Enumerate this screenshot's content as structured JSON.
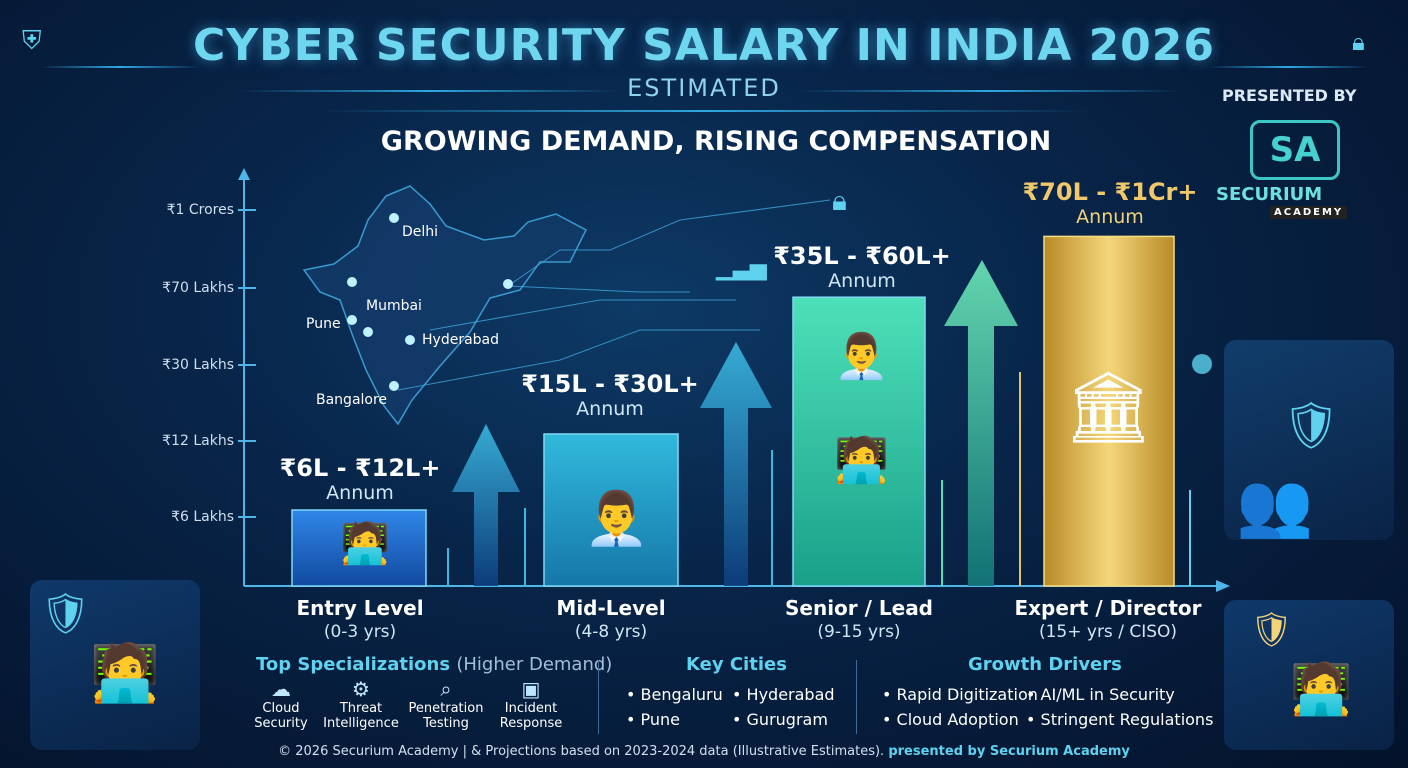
{
  "header": {
    "title": "CYBER SECURITY SALARY IN INDIA 2026",
    "subtitle": "ESTIMATED",
    "tagline": "GROWING DEMAND, RISING COMPENSATION",
    "presented_by": "PRESENTED BY",
    "logo_mark": "SA",
    "brand_name": "SECURIUM",
    "brand_sub": "ACADEMY"
  },
  "chart_data": {
    "type": "bar",
    "y_ticks": [
      "₹1 Crores",
      "₹70 Lakhs",
      "₹30 Lakhs",
      "₹12 Lakhs",
      "₹6 Lakhs"
    ],
    "tiers": [
      {
        "name": "Entry Level",
        "years": "(0-3 yrs)",
        "range": "₹6L - ₹12L+",
        "unit": "Annum",
        "level": 1
      },
      {
        "name": "Mid-Level",
        "years": "(4-8 yrs)",
        "range": "₹15L - ₹30L+",
        "unit": "Annum",
        "level": 2
      },
      {
        "name": "Senior / Lead",
        "years": "(9-15 yrs)",
        "range": "₹35L - ₹60L+",
        "unit": "Annum",
        "level": 3.8
      },
      {
        "name": "Expert / Director",
        "years": "(15+ yrs / CISO)",
        "range": "₹70L - ₹1Cr+",
        "unit": "Annum",
        "level": 4.6
      }
    ]
  },
  "map": {
    "cities": [
      "Delhi",
      "Mumbai",
      "Pune",
      "Hyderabad",
      "Bangalore"
    ]
  },
  "specializations": {
    "heading": "Top Specializations",
    "heading_note": "(Higher Demand)",
    "items": [
      {
        "label": "Cloud\nSecurity",
        "icon": "cloud-icon"
      },
      {
        "label": "Threat\nIntelligence",
        "icon": "gear-icon"
      },
      {
        "label": "Penetration\nTesting",
        "icon": "search-icon"
      },
      {
        "label": "Incident\nResponse",
        "icon": "monitor-icon"
      }
    ]
  },
  "key_cities": {
    "heading": "Key Cities",
    "items": [
      "Bengaluru",
      "Hyderabad",
      "Pune",
      "Gurugram"
    ]
  },
  "growth_drivers": {
    "heading": "Growth Drivers",
    "items": [
      "Rapid Digitization",
      "AI/ML in Security",
      "Cloud Adoption",
      "Stringent Regulations"
    ]
  },
  "footer": {
    "text": "© 2026 Securium Academy | & Projections based on 2023-2024 data (Illustrative Estimates).",
    "presented": "presented by Securium Academy"
  },
  "colors": {
    "accent": "#5ed2ee",
    "entry_bar": "#1f6fd0",
    "mid_bar": "#22a3c8",
    "senior_bar": "#2fc8a8",
    "expert_bar": "#d8b24a"
  }
}
